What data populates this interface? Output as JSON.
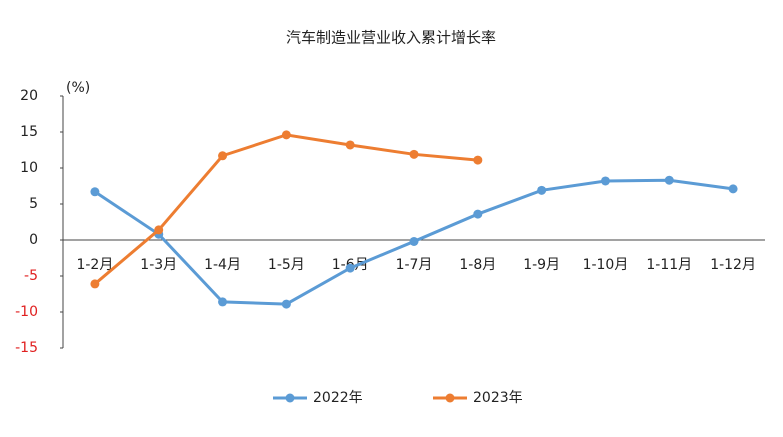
{
  "chart_data": {
    "type": "line",
    "title": "汽车制造业营业收入累计增长率",
    "y_unit_label": "(%)",
    "categories": [
      "1-2月",
      "1-3月",
      "1-4月",
      "1-5月",
      "1-6月",
      "1-7月",
      "1-8月",
      "1-9月",
      "1-10月",
      "1-11月",
      "1-12月"
    ],
    "series": [
      {
        "name": "2022年",
        "color": "#5b9bd5",
        "values": [
          6.7,
          0.8,
          -8.6,
          -8.9,
          -3.9,
          -0.2,
          3.6,
          6.9,
          8.2,
          8.3,
          7.1
        ]
      },
      {
        "name": "2023年",
        "color": "#ed7d31",
        "values": [
          -6.1,
          1.4,
          11.7,
          14.6,
          13.2,
          11.9,
          11.1,
          null,
          null,
          null,
          null
        ]
      }
    ],
    "ylim": [
      -15,
      20
    ],
    "yticks": [
      -15,
      -10,
      -5,
      0,
      5,
      10,
      15,
      20
    ],
    "negative_tick_color": "#e02020",
    "grid": false
  }
}
